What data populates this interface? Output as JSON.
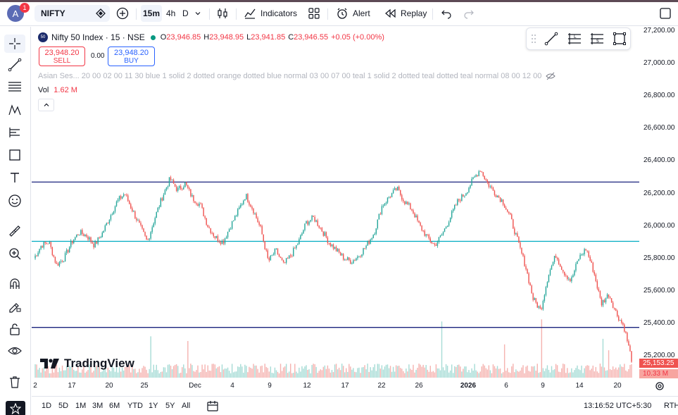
{
  "topbar": {
    "avatar_letter": "A",
    "notification_count": "1",
    "symbol": "NIFTY",
    "intervals": [
      "15m",
      "4h",
      "D"
    ],
    "indicators_label": "Indicators",
    "alert_label": "Alert",
    "replay_label": "Replay"
  },
  "legend": {
    "title": "Nifty 50 Index · 15 · NSE",
    "logo_text": "50",
    "o_label": "O",
    "o_value": "23,946.85",
    "h_label": "H",
    "h_value": "23,948.95",
    "l_label": "L",
    "l_value": "23,941.85",
    "c_label": "C",
    "c_value": "23,946.55",
    "change": "+0.05 (+0.00%)",
    "sell_price": "23,948.20",
    "sell_label": "SELL",
    "spread": "0.00",
    "buy_price": "23,948.20",
    "buy_label": "BUY",
    "session_text": "Asian Ses... 20 00 02 00 11 30 blue 1 solid 2 dotted orange dotted blue normal 03 00 07 00 teal 1 solid 2 dotted teal dotted teal normal 08 00 12 00",
    "vol_label": "Vol",
    "vol_value": "1.62 M"
  },
  "price_axis": {
    "ticks": [
      "27,200.00",
      "27,000.00",
      "26,800.00",
      "26,600.00",
      "26,400.00",
      "26,200.00",
      "26,000.00",
      "25,800.00",
      "25,600.00",
      "25,400.00",
      "25,200.00"
    ],
    "last_price_label": "25,153.25",
    "volume_label": "10.33 M"
  },
  "time_axis": {
    "ticks": [
      "2",
      "17",
      "20",
      "25",
      "Dec",
      "4",
      "9",
      "12",
      "17",
      "22",
      "26",
      "2026",
      "6",
      "9",
      "14",
      "20"
    ]
  },
  "bottombar": {
    "ranges": [
      "1D",
      "5D",
      "1M",
      "3M",
      "6M",
      "YTD",
      "1Y",
      "5Y",
      "All"
    ],
    "clock": "13:16:52 UTC+5:30",
    "rth": "RTH"
  },
  "branding": {
    "logo_text": "TradingView"
  },
  "colors": {
    "up": "#26a69a",
    "down": "#ef5350",
    "navy_line": "#1a237e",
    "teal_line": "#00acc1",
    "sell_red": "#f23645",
    "buy_blue": "#2962ff"
  },
  "chart_data": {
    "type": "line",
    "horizontal_levels": [
      26270,
      25905,
      25375
    ],
    "price_range": [
      25060,
      27260
    ],
    "x": [
      "2",
      "17",
      "20",
      "25",
      "Dec",
      "4",
      "9",
      "12",
      "17",
      "22",
      "26",
      "2026",
      "6",
      "9",
      "14",
      "20"
    ],
    "close_path": [
      [
        0,
        25800
      ],
      [
        1,
        25880
      ],
      [
        2,
        25900
      ],
      [
        3,
        25760
      ],
      [
        4,
        25800
      ],
      [
        5,
        25900
      ],
      [
        6,
        25960
      ],
      [
        7,
        25940
      ],
      [
        8,
        25880
      ],
      [
        9,
        25950
      ],
      [
        10,
        26050
      ],
      [
        11,
        26150
      ],
      [
        12,
        26200
      ],
      [
        13,
        26100
      ],
      [
        14,
        26000
      ],
      [
        15,
        25900
      ],
      [
        16,
        26050
      ],
      [
        17,
        26180
      ],
      [
        18,
        26290
      ],
      [
        19,
        26220
      ],
      [
        20,
        26260
      ],
      [
        21,
        26170
      ],
      [
        22,
        26130
      ],
      [
        23,
        26000
      ],
      [
        24,
        25930
      ],
      [
        25,
        25900
      ],
      [
        26,
        26000
      ],
      [
        27,
        26090
      ],
      [
        28,
        26190
      ],
      [
        29,
        26100
      ],
      [
        30,
        25980
      ],
      [
        31,
        25780
      ],
      [
        32,
        25850
      ],
      [
        33,
        25760
      ],
      [
        34,
        25820
      ],
      [
        35,
        25900
      ],
      [
        36,
        26020
      ],
      [
        37,
        26050
      ],
      [
        38,
        25980
      ],
      [
        39,
        25900
      ],
      [
        40,
        25850
      ],
      [
        41,
        25800
      ],
      [
        42,
        25780
      ],
      [
        43,
        25820
      ],
      [
        44,
        25880
      ],
      [
        45,
        25960
      ],
      [
        46,
        26120
      ],
      [
        47,
        26180
      ],
      [
        48,
        26230
      ],
      [
        49,
        26150
      ],
      [
        50,
        26100
      ],
      [
        51,
        26000
      ],
      [
        52,
        25930
      ],
      [
        53,
        25880
      ],
      [
        54,
        25950
      ],
      [
        55,
        26050
      ],
      [
        56,
        26150
      ],
      [
        57,
        26200
      ],
      [
        58,
        26280
      ],
      [
        59,
        26350
      ],
      [
        60,
        26260
      ],
      [
        61,
        26200
      ],
      [
        62,
        26150
      ],
      [
        63,
        26050
      ],
      [
        64,
        25900
      ],
      [
        65,
        25750
      ],
      [
        66,
        25550
      ],
      [
        67,
        25480
      ],
      [
        68,
        25700
      ],
      [
        69,
        25820
      ],
      [
        70,
        25720
      ],
      [
        71,
        25660
      ],
      [
        72,
        25800
      ],
      [
        73,
        25860
      ],
      [
        74,
        25720
      ],
      [
        75,
        25520
      ],
      [
        76,
        25580
      ],
      [
        77,
        25460
      ],
      [
        78,
        25380
      ],
      [
        79,
        25180
      ]
    ]
  }
}
